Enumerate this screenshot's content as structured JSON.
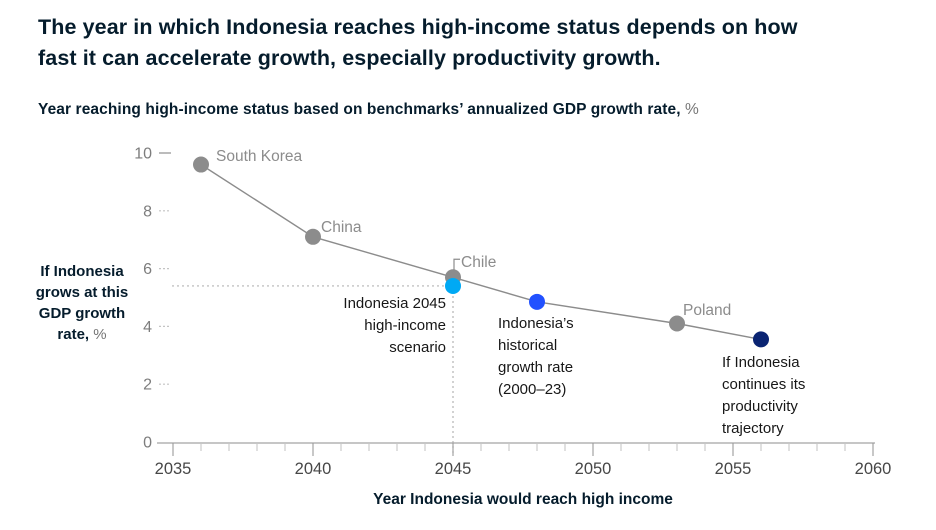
{
  "header": {
    "title": "The year in which Indonesia reaches high-income status depends on how\nfast it can accelerate growth, especially productivity growth.",
    "subtitle": "Year reaching high-income status based on benchmarks’ annualized GDP growth rate,",
    "subtitle_unit": "%"
  },
  "chart_data": {
    "type": "scatter",
    "title": "Year reaching high-income status based on benchmarks’ annualized GDP growth rate, %",
    "xlabel": "Year Indonesia would reach high income",
    "ylabel": "If Indonesia\ngrows at this\nGDP growth\nrate,",
    "ylabel_unit": "%",
    "xlim": [
      2035,
      2060
    ],
    "ylim": [
      0,
      10
    ],
    "x_ticks": [
      2035,
      2040,
      2045,
      2050,
      2055,
      2060
    ],
    "x_minor_step": 1,
    "y_ticks": [
      0,
      2,
      4,
      6,
      8,
      10
    ],
    "grid": false,
    "legend_position": "none",
    "line_color": "#8c8c8c",
    "colors": {
      "benchmark": "#8c8c8c",
      "scenario-light-blue": "#00a9f4",
      "scenario-blue": "#2251ff",
      "scenario-navy": "#0a2472"
    },
    "guide": {
      "x": 2045,
      "y": 5.4
    },
    "points": [
      {
        "id": "south-korea",
        "label": "South Korea",
        "x": 2036,
        "y": 9.6,
        "series": "benchmark",
        "on_line": true
      },
      {
        "id": "china",
        "label": "China",
        "x": 2040,
        "y": 7.1,
        "series": "benchmark",
        "on_line": true
      },
      {
        "id": "chile",
        "label": "Chile",
        "x": 2045,
        "y": 5.7,
        "series": "benchmark",
        "on_line": true
      },
      {
        "id": "indonesia-2045-scenario",
        "label": "Indonesia 2045\nhigh-income\nscenario",
        "x": 2045,
        "y": 5.4,
        "series": "scenario-light-blue",
        "on_line": false
      },
      {
        "id": "indonesia-historical",
        "label": "Indonesia’s\nhistorical\ngrowth rate\n(2000–23)",
        "x": 2048,
        "y": 4.85,
        "series": "scenario-blue",
        "on_line": true
      },
      {
        "id": "poland",
        "label": "Poland",
        "x": 2053,
        "y": 4.1,
        "series": "benchmark",
        "on_line": true
      },
      {
        "id": "indonesia-productivity",
        "label": "If Indonesia\ncontinues its\nproductivity\ntrajectory",
        "x": 2056,
        "y": 3.55,
        "series": "scenario-navy",
        "on_line": true
      }
    ]
  }
}
